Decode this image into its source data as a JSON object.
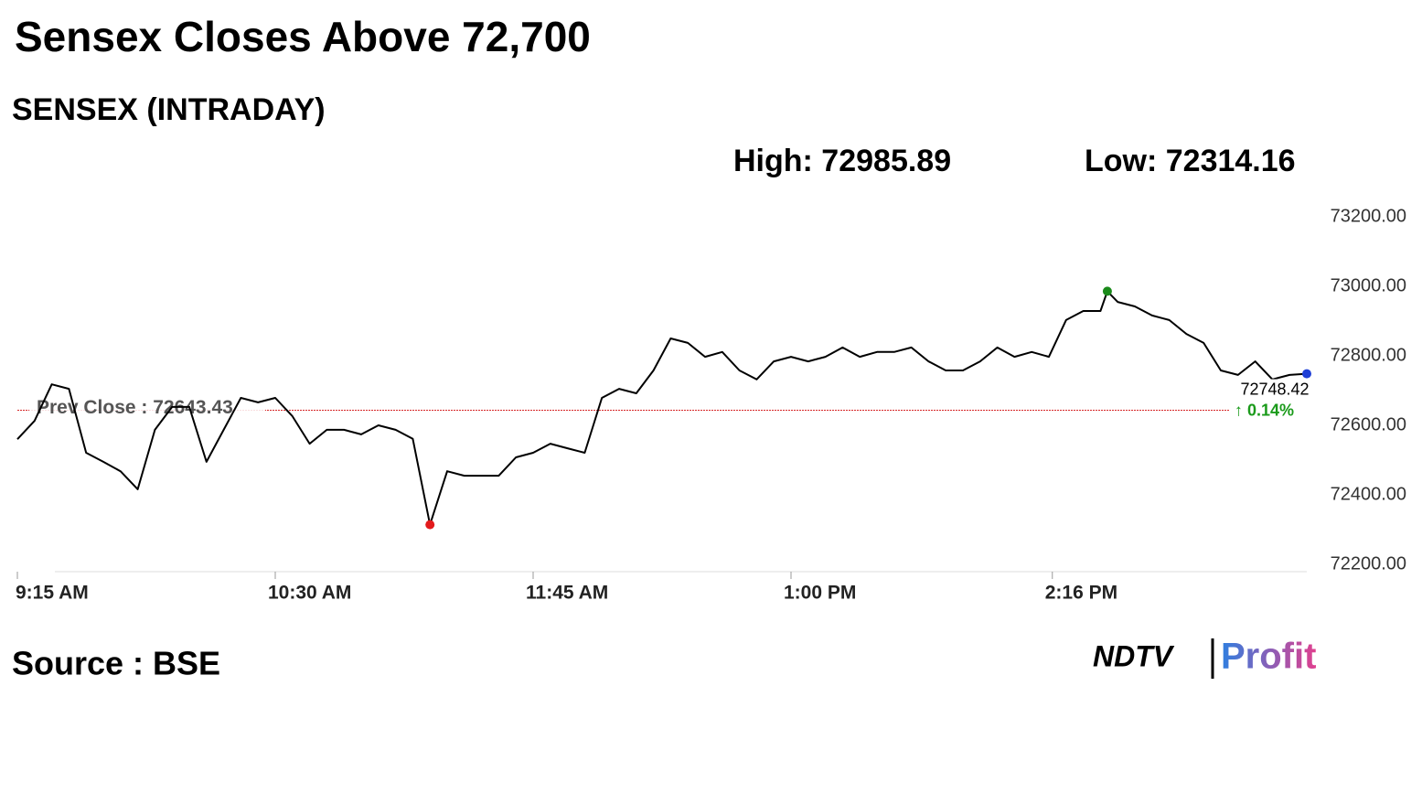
{
  "chart_data": {
    "type": "line",
    "title": "Sensex Closes Above 72,700",
    "subtitle": "SENSEX (INTRADAY)",
    "high_label": "High: 72985.89",
    "low_label": "Low: 72314.16",
    "prev_close": {
      "label": "Prev Close : 72643.43",
      "value": 72643.43,
      "color": "#d62728"
    },
    "last_label": "72748.42",
    "change_label": "↑ 0.14%",
    "source": "Source : BSE",
    "logo": [
      "NDTV",
      "Profit"
    ],
    "x": [
      "9:15 AM",
      "9:20 AM",
      "9:25 AM",
      "9:30 AM",
      "9:35 AM",
      "9:40 AM",
      "9:45 AM",
      "9:50 AM",
      "9:55 AM",
      "10:00 AM",
      "10:05 AM",
      "10:10 AM",
      "10:15 AM",
      "10:20 AM",
      "10:25 AM",
      "10:30 AM",
      "10:35 AM",
      "10:40 AM",
      "10:45 AM",
      "10:50 AM",
      "10:55 AM",
      "11:00 AM",
      "11:05 AM",
      "11:10 AM",
      "11:15 AM",
      "11:20 AM",
      "11:25 AM",
      "11:30 AM",
      "11:35 AM",
      "11:40 AM",
      "11:45 AM",
      "11:50 AM",
      "11:55 AM",
      "12:00 PM",
      "12:05 PM",
      "12:10 PM",
      "12:15 PM",
      "12:20 PM",
      "12:25 PM",
      "12:30 PM",
      "12:35 PM",
      "12:40 PM",
      "12:45 PM",
      "12:50 PM",
      "12:55 PM",
      "1:00 PM",
      "1:05 PM",
      "1:10 PM",
      "1:15 PM",
      "1:20 PM",
      "1:25 PM",
      "1:30 PM",
      "1:35 PM",
      "1:40 PM",
      "1:45 PM",
      "1:50 PM",
      "1:55 PM",
      "2:00 PM",
      "2:05 PM",
      "2:10 PM",
      "2:15 PM",
      "2:20 PM",
      "2:25 PM",
      "2:30 PM",
      "2:32 PM",
      "2:35 PM",
      "2:40 PM",
      "2:45 PM",
      "2:50 PM",
      "2:55 PM",
      "3:00 PM",
      "3:05 PM",
      "3:10 PM",
      "3:15 PM",
      "3:20 PM",
      "3:25 PM",
      "3:30 PM"
    ],
    "series": [
      {
        "name": "SENSEX",
        "color": "#000000",
        "values": [
          72560,
          72613,
          72718,
          72705,
          72521,
          72495,
          72468,
          72416,
          72587,
          72653,
          72653,
          72495,
          72587,
          72679,
          72666,
          72679,
          72626,
          72547,
          72587,
          72587,
          72574,
          72600,
          72587,
          72561,
          72314.16,
          72468,
          72455,
          72455,
          72455,
          72508,
          72521,
          72547,
          72534,
          72521,
          72679,
          72705,
          72692,
          72758,
          72850,
          72837,
          72797,
          72811,
          72758,
          72732,
          72784,
          72797,
          72784,
          72797,
          72824,
          72797,
          72811,
          72811,
          72824,
          72784,
          72758,
          72758,
          72784,
          72824,
          72797,
          72811,
          72797,
          72903,
          72929,
          72929,
          72985.89,
          72955,
          72942,
          72916,
          72903,
          72863,
          72837,
          72758,
          72745,
          72784,
          72732,
          72745,
          72748.42
        ]
      }
    ],
    "markers": {
      "high": {
        "index": 64,
        "color": "#1a8a1a"
      },
      "low": {
        "index": 24,
        "color": "#e31a1c"
      },
      "last": {
        "index": 76,
        "color": "#1f3fd6"
      }
    },
    "change_color": "#1a9a1a",
    "ylim": [
      72200,
      73200
    ],
    "yticks": [
      {
        "value": 72200,
        "label": "72200.00"
      },
      {
        "value": 72400,
        "label": "72400.00"
      },
      {
        "value": 72600,
        "label": "72600.00"
      },
      {
        "value": 72800,
        "label": "72800.00"
      },
      {
        "value": 73000,
        "label": "73000.00"
      },
      {
        "value": 73200,
        "label": "73200.00"
      }
    ],
    "xticks": [
      "9:15 AM",
      "10:30 AM",
      "11:45 AM",
      "1:00 PM",
      "2:16 PM"
    ]
  }
}
